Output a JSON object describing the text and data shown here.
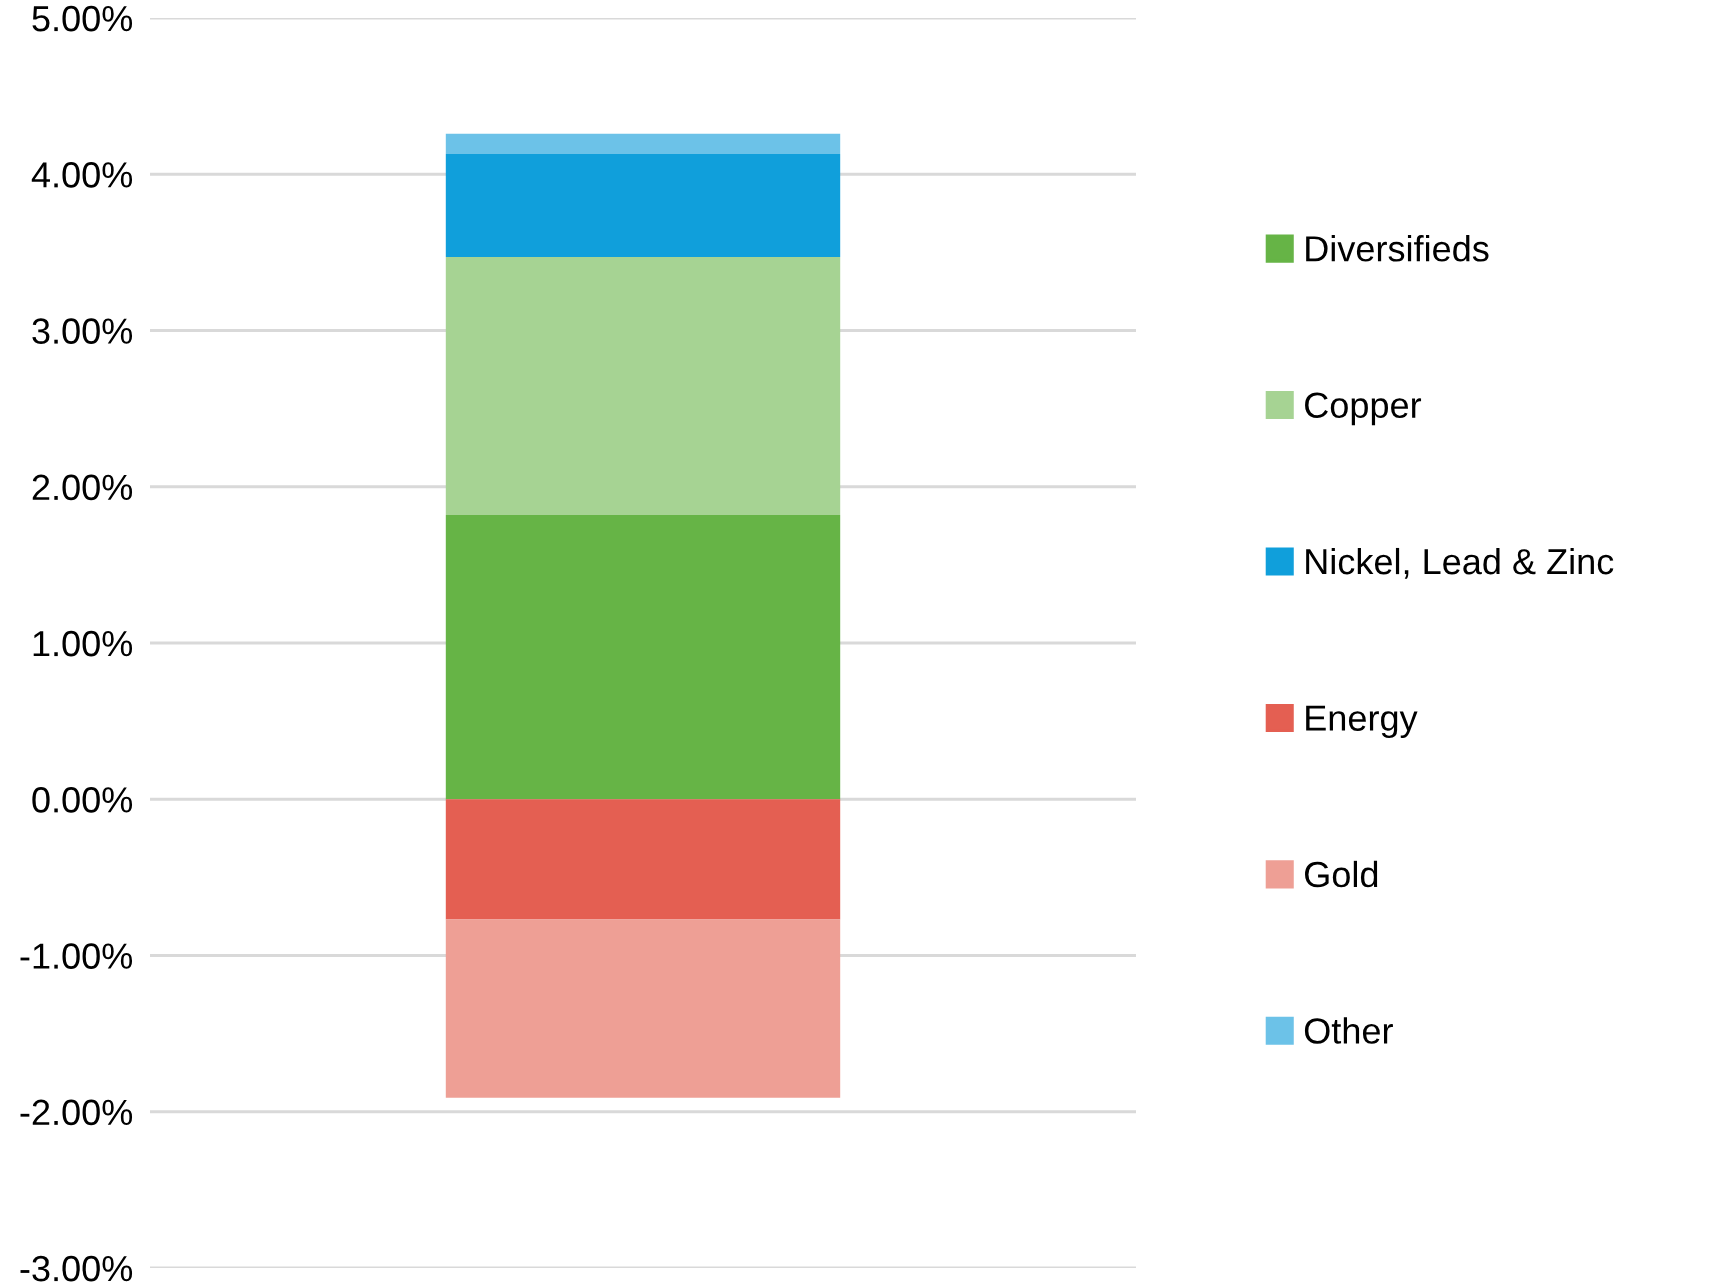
{
  "chart_data": {
    "type": "bar",
    "stacked": true,
    "categories": [
      null
    ],
    "series": [
      {
        "name": "Diversifieds",
        "color": "#66b446",
        "values": [
          1.82
        ]
      },
      {
        "name": "Copper",
        "color": "#a6d393",
        "values": [
          1.65
        ]
      },
      {
        "name": "Nickel, Lead & Zinc",
        "color": "#109fdb",
        "values": [
          0.66
        ]
      },
      {
        "name": "Energy",
        "color": "#e45f52",
        "values": [
          -0.77
        ]
      },
      {
        "name": "Gold",
        "color": "#ee9f95",
        "values": [
          -1.14
        ]
      },
      {
        "name": "Other",
        "color": "#6cc2e8",
        "values": [
          0.13
        ]
      }
    ],
    "ylim": [
      -3,
      5
    ],
    "yticks": [
      {
        "value": 5,
        "label": "5.00%"
      },
      {
        "value": 4,
        "label": "4.00%"
      },
      {
        "value": 3,
        "label": "3.00%"
      },
      {
        "value": 2,
        "label": "2.00%"
      },
      {
        "value": 1,
        "label": "1.00%"
      },
      {
        "value": 0,
        "label": "0.00%"
      },
      {
        "value": -1,
        "label": "-1.00%"
      },
      {
        "value": -2,
        "label": "-2.00%"
      },
      {
        "value": -3,
        "label": "-3.00%"
      }
    ],
    "grid": "y",
    "legend": "right"
  }
}
